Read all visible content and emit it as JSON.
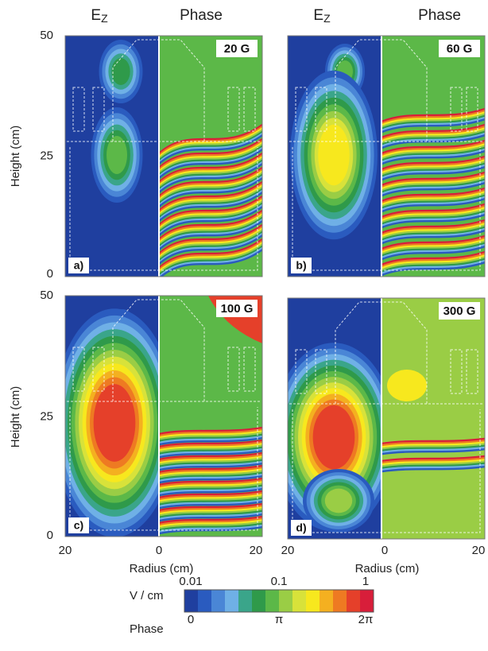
{
  "header": {
    "ez": {
      "main": "E",
      "sub": "Z"
    },
    "phase": "Phase"
  },
  "panels": [
    {
      "tag": "a)",
      "field": "20 G"
    },
    {
      "tag": "b)",
      "field": "60 G"
    },
    {
      "tag": "c)",
      "field": "100 G"
    },
    {
      "tag": "d)",
      "field": "300 G"
    }
  ],
  "y_axis": {
    "label": "Height (cm)",
    "ticks": [
      "50",
      "25",
      "0"
    ]
  },
  "x_axis": {
    "label": "Radius (cm)",
    "ticks": [
      "20",
      "0",
      "20"
    ]
  },
  "colorbar": {
    "unit_label": "V / cm",
    "phase_label": "Phase",
    "top_ticks": [
      "0.01",
      "0.1",
      "1"
    ],
    "bottom_ticks": [
      "0",
      "π",
      "2π"
    ],
    "colors": [
      "#1f3f9f",
      "#2a5bbf",
      "#4a86d6",
      "#6fb0e6",
      "#3aa58a",
      "#2f9a4a",
      "#5cb848",
      "#9acd45",
      "#d8e23a",
      "#f7e81e",
      "#f4b020",
      "#ee7a22",
      "#e5402a",
      "#d81e3a"
    ]
  }
}
